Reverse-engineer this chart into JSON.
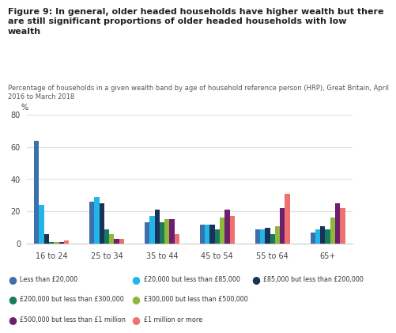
{
  "title": "Figure 9: In general, older headed households have higher wealth but there\nare still significant proportions of older headed households with low\nwealth",
  "subtitle": "Percentage of households in a given wealth band by age of household reference person (HRP), Great Britain, April\n2016 to March 2018",
  "ylabel": "%",
  "ylim": [
    0,
    80
  ],
  "yticks": [
    0,
    20,
    40,
    60,
    80
  ],
  "categories": [
    "16 to 24",
    "25 to 34",
    "35 to 44",
    "45 to 54",
    "55 to 64",
    "65+"
  ],
  "series": [
    {
      "label": "Less than £20,000",
      "color": "#3d6fad",
      "values": [
        64,
        26,
        13,
        12,
        9,
        7
      ]
    },
    {
      "label": "£20,000 but less than £85,000",
      "color": "#22b5e8",
      "values": [
        24,
        29,
        17,
        12,
        9,
        9
      ]
    },
    {
      "label": "£85,000 but less than £200,000",
      "color": "#1a3158",
      "values": [
        6,
        25,
        21,
        12,
        10,
        11
      ]
    },
    {
      "label": "£200,000 but less than £300,000",
      "color": "#1a7a5e",
      "values": [
        1,
        9,
        13,
        9,
        6,
        9
      ]
    },
    {
      "label": "£300,000 but less than £500,000",
      "color": "#8db83a",
      "values": [
        1,
        6,
        15,
        16,
        11,
        16
      ]
    },
    {
      "label": "£500,000 but less than £1 million",
      "color": "#6d1f6d",
      "values": [
        1,
        3,
        15,
        21,
        22,
        25
      ]
    },
    {
      "label": "£1 million or more",
      "color": "#f07070",
      "values": [
        2,
        3,
        6,
        17,
        31,
        22
      ]
    }
  ],
  "background_color": "#ffffff",
  "grid_color": "#e0e0e0",
  "bar_width": 0.09
}
